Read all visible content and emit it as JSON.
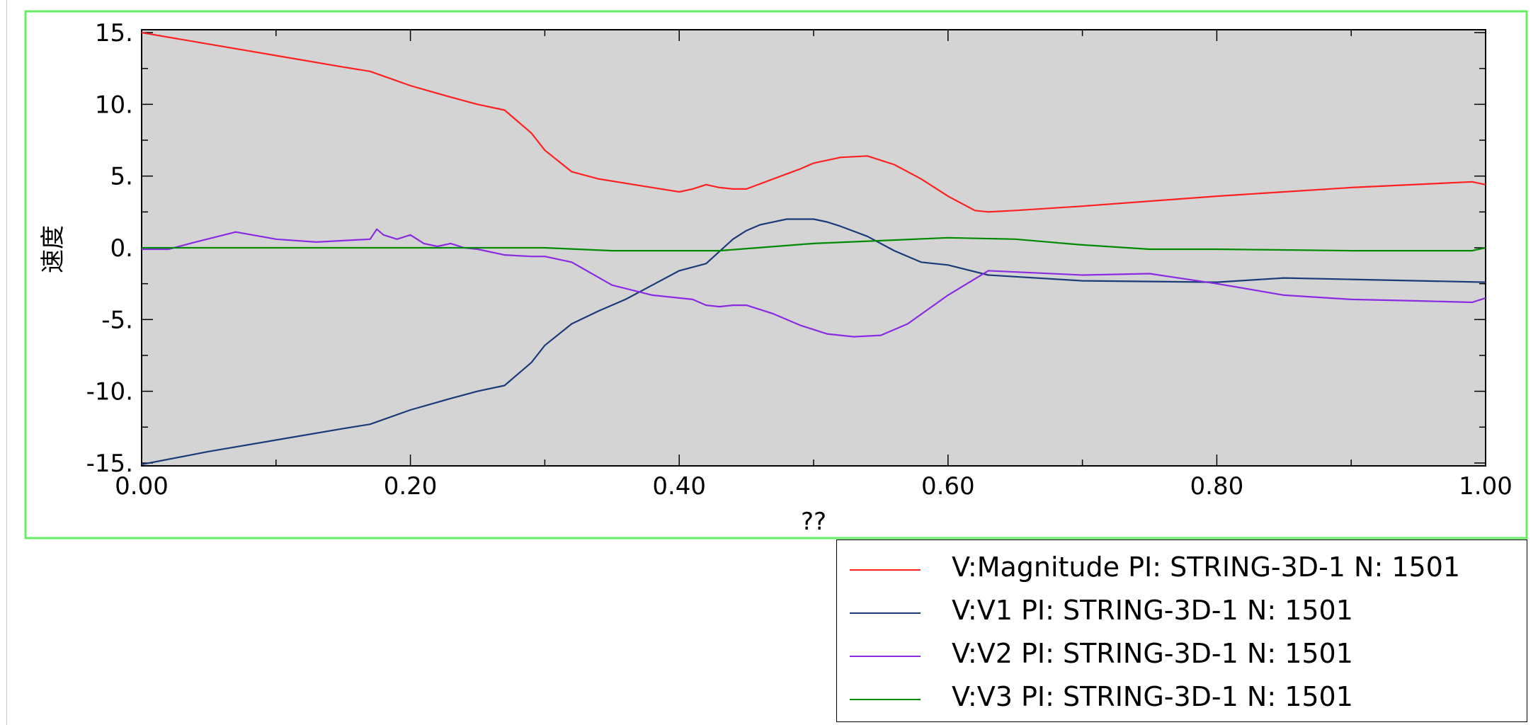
{
  "chart_data": {
    "type": "line",
    "xlabel": "??",
    "ylabel": "速度",
    "xlim": [
      0.0,
      1.0
    ],
    "ylim": [
      -15.2,
      15.2
    ],
    "x_ticks": [
      "0.00",
      "0.20",
      "0.40",
      "0.60",
      "0.80",
      "1.00"
    ],
    "y_ticks": [
      "15.",
      "10.",
      "5.",
      "0.",
      "-5.",
      "-10.",
      "-15."
    ],
    "grid": false,
    "background": "#d4d4d4",
    "frame_color": "#66ee66",
    "legend_position": "bottom-right",
    "series": [
      {
        "name": "V:Magnitude PI: STRING-3D-1 N: 1501",
        "color": "#ff2020",
        "x": [
          0.0,
          0.05,
          0.1,
          0.15,
          0.17,
          0.2,
          0.23,
          0.25,
          0.27,
          0.29,
          0.3,
          0.32,
          0.34,
          0.36,
          0.38,
          0.4,
          0.41,
          0.42,
          0.43,
          0.44,
          0.45,
          0.47,
          0.49,
          0.5,
          0.52,
          0.54,
          0.56,
          0.58,
          0.6,
          0.62,
          0.63,
          0.65,
          0.7,
          0.8,
          0.9,
          0.99,
          1.0
        ],
        "y": [
          15.0,
          14.2,
          13.4,
          12.6,
          12.3,
          11.3,
          10.5,
          10.0,
          9.6,
          8.0,
          6.8,
          5.3,
          4.8,
          4.5,
          4.2,
          3.9,
          4.1,
          4.4,
          4.2,
          4.1,
          4.1,
          4.8,
          5.5,
          5.9,
          6.3,
          6.4,
          5.8,
          4.8,
          3.6,
          2.6,
          2.5,
          2.6,
          2.9,
          3.6,
          4.2,
          4.6,
          4.4
        ]
      },
      {
        "name": "V:V1 PI: STRING-3D-1 N: 1501",
        "color": "#1a3a7a",
        "x": [
          0.0,
          0.05,
          0.1,
          0.15,
          0.17,
          0.2,
          0.23,
          0.25,
          0.27,
          0.29,
          0.3,
          0.32,
          0.34,
          0.36,
          0.38,
          0.4,
          0.42,
          0.44,
          0.45,
          0.46,
          0.48,
          0.5,
          0.51,
          0.52,
          0.54,
          0.56,
          0.58,
          0.6,
          0.63,
          0.7,
          0.8,
          0.85,
          0.9,
          1.0
        ],
        "y": [
          -15.1,
          -14.2,
          -13.4,
          -12.6,
          -12.3,
          -11.3,
          -10.5,
          -10.0,
          -9.6,
          -8.0,
          -6.8,
          -5.3,
          -4.4,
          -3.6,
          -2.6,
          -1.6,
          -1.1,
          0.6,
          1.2,
          1.6,
          2.0,
          2.0,
          1.8,
          1.5,
          0.8,
          -0.2,
          -1.0,
          -1.2,
          -1.9,
          -2.3,
          -2.4,
          -2.1,
          -2.2,
          -2.4
        ]
      },
      {
        "name": "V:V2 PI: STRING-3D-1 N: 1501",
        "color": "#8a2be2",
        "x": [
          0.0,
          0.02,
          0.04,
          0.07,
          0.1,
          0.13,
          0.17,
          0.175,
          0.18,
          0.19,
          0.2,
          0.21,
          0.22,
          0.23,
          0.24,
          0.25,
          0.27,
          0.29,
          0.3,
          0.32,
          0.35,
          0.38,
          0.41,
          0.42,
          0.43,
          0.44,
          0.45,
          0.47,
          0.49,
          0.51,
          0.53,
          0.55,
          0.57,
          0.6,
          0.63,
          0.7,
          0.75,
          0.8,
          0.85,
          0.9,
          0.95,
          0.99,
          1.0
        ],
        "y": [
          -0.1,
          -0.1,
          0.4,
          1.1,
          0.6,
          0.4,
          0.6,
          1.3,
          0.9,
          0.6,
          0.9,
          0.3,
          0.1,
          0.3,
          0.0,
          -0.1,
          -0.5,
          -0.6,
          -0.6,
          -1.0,
          -2.6,
          -3.3,
          -3.6,
          -4.0,
          -4.1,
          -4.0,
          -4.0,
          -4.6,
          -5.4,
          -6.0,
          -6.2,
          -6.1,
          -5.3,
          -3.3,
          -1.6,
          -1.9,
          -1.8,
          -2.5,
          -3.3,
          -3.6,
          -3.7,
          -3.8,
          -3.5
        ]
      },
      {
        "name": "V:V3 PI: STRING-3D-1 N: 1501",
        "color": "#008a00",
        "x": [
          0.0,
          0.1,
          0.2,
          0.3,
          0.35,
          0.43,
          0.5,
          0.55,
          0.6,
          0.65,
          0.7,
          0.75,
          0.8,
          0.9,
          0.99,
          1.0
        ],
        "y": [
          0.0,
          0.0,
          0.0,
          0.0,
          -0.2,
          -0.2,
          0.3,
          0.5,
          0.7,
          0.6,
          0.2,
          -0.1,
          -0.1,
          -0.2,
          -0.2,
          0.0
        ]
      }
    ]
  }
}
